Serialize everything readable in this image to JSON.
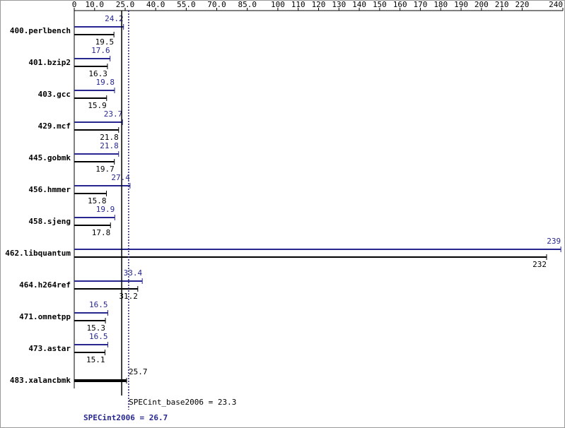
{
  "chart_data": {
    "type": "bar",
    "categories": [
      "400.perlbench",
      "401.bzip2",
      "403.gcc",
      "429.mcf",
      "445.gobmk",
      "456.hmmer",
      "458.sjeng",
      "462.libquantum",
      "464.h264ref",
      "471.omnetpp",
      "473.astar",
      "483.xalancbmk"
    ],
    "series": [
      {
        "color": "#27278f",
        "values": [
          24.2,
          17.6,
          19.8,
          23.7,
          21.8,
          27.4,
          19.9,
          239,
          33.4,
          16.5,
          16.5,
          null
        ]
      },
      {
        "color": "#000000",
        "values": [
          19.5,
          16.3,
          15.9,
          21.8,
          19.7,
          15.8,
          17.8,
          232,
          31.2,
          15.3,
          15.1,
          25.7
        ]
      }
    ],
    "xlim": [
      0,
      240
    ],
    "xticks": [
      0,
      {
        "value": 10,
        "label": "10.0"
      },
      {
        "value": 25,
        "label": "25.0"
      },
      {
        "value": 40,
        "label": "40.0"
      },
      {
        "value": 55,
        "label": "55.0"
      },
      {
        "value": 70,
        "label": "70.0"
      },
      {
        "value": 85,
        "label": "85.0"
      },
      100,
      110,
      120,
      130,
      140,
      150,
      160,
      170,
      180,
      190,
      200,
      210,
      220,
      240
    ],
    "reference_lines": [
      {
        "label": "SPECint_base2006 = 23.3",
        "value": 23.3,
        "color": "#000000"
      },
      {
        "label": "SPECint2006 = 26.7",
        "value": 26.7,
        "color": "#27278f"
      }
    ]
  }
}
